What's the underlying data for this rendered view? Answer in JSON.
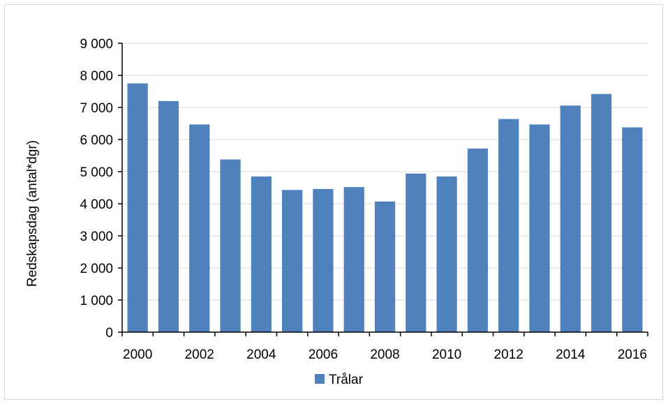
{
  "chart_data": {
    "type": "bar",
    "categories": [
      "2000",
      "2001",
      "2002",
      "2003",
      "2004",
      "2005",
      "2006",
      "2007",
      "2008",
      "2009",
      "2010",
      "2011",
      "2012",
      "2013",
      "2014",
      "2015",
      "2016"
    ],
    "x_tick_labels": [
      "2000",
      "2002",
      "2004",
      "2006",
      "2008",
      "2010",
      "2012",
      "2014",
      "2016"
    ],
    "series": [
      {
        "name": "Trålar",
        "color": "#4f81bd",
        "values": [
          7750,
          7200,
          6470,
          5380,
          4850,
          4430,
          4460,
          4520,
          4070,
          4940,
          4850,
          5720,
          6640,
          6470,
          7060,
          7420,
          6380
        ]
      }
    ],
    "title": "",
    "xlabel": "",
    "ylabel": "Redskapsdag (antal*dgr)",
    "ylim": [
      0,
      9000
    ],
    "y_ticks": [
      0,
      1000,
      2000,
      3000,
      4000,
      5000,
      6000,
      7000,
      8000,
      9000
    ],
    "y_tick_labels": [
      "0",
      "1 000",
      "2 000",
      "3 000",
      "4 000",
      "5 000",
      "6 000",
      "7 000",
      "8 000",
      "9 000"
    ],
    "grid": true,
    "legend_position": "bottom",
    "colors": {
      "grid": "#d9d9d9",
      "axis": "#000000"
    }
  }
}
